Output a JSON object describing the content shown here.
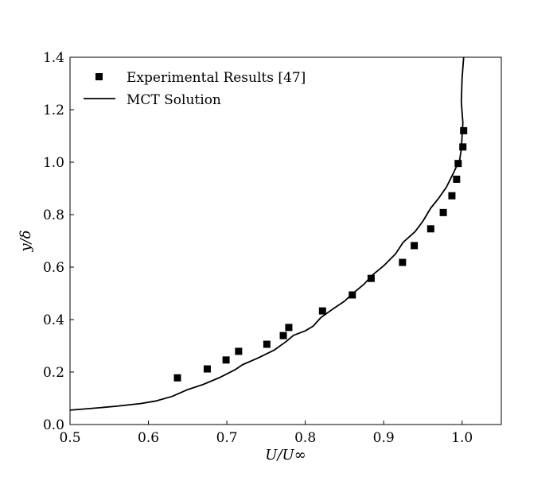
{
  "chart_data": {
    "type": "line+scatter",
    "title": "",
    "xlabel": "U/U∞",
    "ylabel": "y/δ",
    "xlim": [
      0.5,
      1.05
    ],
    "ylim": [
      0.0,
      1.4
    ],
    "x_ticks": [
      {
        "value": 0.5,
        "label": "0.5"
      },
      {
        "value": 0.6,
        "label": "0.6"
      },
      {
        "value": 0.7,
        "label": "0.7"
      },
      {
        "value": 0.8,
        "label": "0.8"
      },
      {
        "value": 0.9,
        "label": "0.9"
      },
      {
        "value": 1.0,
        "label": "1.0"
      }
    ],
    "y_ticks": [
      {
        "value": 0.0,
        "label": "0.0"
      },
      {
        "value": 0.2,
        "label": "0.2"
      },
      {
        "value": 0.4,
        "label": "0.4"
      },
      {
        "value": 0.6,
        "label": "0.6"
      },
      {
        "value": 0.8,
        "label": "0.8"
      },
      {
        "value": 1.0,
        "label": "1.0"
      },
      {
        "value": 1.2,
        "label": "1.2"
      },
      {
        "value": 1.4,
        "label": "1.4"
      }
    ],
    "grid": false,
    "legend_position": "top-left",
    "series": [
      {
        "name": "Experimental Results [47]",
        "kind": "scatter",
        "marker": "square",
        "color": "#000000",
        "points": [
          [
            0.637,
            0.178
          ],
          [
            0.675,
            0.212
          ],
          [
            0.699,
            0.246
          ],
          [
            0.715,
            0.279
          ],
          [
            0.751,
            0.306
          ],
          [
            0.772,
            0.339
          ],
          [
            0.779,
            0.37
          ],
          [
            0.822,
            0.433
          ],
          [
            0.86,
            0.494
          ],
          [
            0.884,
            0.557
          ],
          [
            0.924,
            0.618
          ],
          [
            0.939,
            0.682
          ],
          [
            0.96,
            0.746
          ],
          [
            0.976,
            0.808
          ],
          [
            0.987,
            0.872
          ],
          [
            0.993,
            0.935
          ],
          [
            0.995,
            0.995
          ],
          [
            1.001,
            1.058
          ],
          [
            1.002,
            1.12
          ]
        ]
      },
      {
        "name": "MCT Solution",
        "kind": "line",
        "color": "#000000",
        "points": [
          [
            0.5,
            0.055
          ],
          [
            0.53,
            0.062
          ],
          [
            0.56,
            0.07
          ],
          [
            0.59,
            0.08
          ],
          [
            0.61,
            0.09
          ],
          [
            0.63,
            0.107
          ],
          [
            0.65,
            0.133
          ],
          [
            0.67,
            0.153
          ],
          [
            0.69,
            0.178
          ],
          [
            0.71,
            0.208
          ],
          [
            0.72,
            0.228
          ],
          [
            0.74,
            0.254
          ],
          [
            0.76,
            0.283
          ],
          [
            0.775,
            0.315
          ],
          [
            0.785,
            0.34
          ],
          [
            0.8,
            0.357
          ],
          [
            0.81,
            0.375
          ],
          [
            0.82,
            0.408
          ],
          [
            0.835,
            0.44
          ],
          [
            0.85,
            0.47
          ],
          [
            0.86,
            0.498
          ],
          [
            0.875,
            0.535
          ],
          [
            0.885,
            0.568
          ],
          [
            0.9,
            0.605
          ],
          [
            0.915,
            0.65
          ],
          [
            0.925,
            0.695
          ],
          [
            0.94,
            0.735
          ],
          [
            0.95,
            0.775
          ],
          [
            0.96,
            0.825
          ],
          [
            0.97,
            0.862
          ],
          [
            0.98,
            0.905
          ],
          [
            0.99,
            0.965
          ],
          [
            0.997,
            1.01
          ],
          [
            0.999,
            1.05
          ],
          [
            1.0,
            1.1
          ],
          [
            1.001,
            1.15
          ],
          [
            0.999,
            1.23
          ],
          [
            1.0,
            1.32
          ],
          [
            1.002,
            1.4
          ]
        ]
      }
    ]
  }
}
